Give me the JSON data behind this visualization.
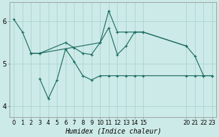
{
  "xlabel": "Humidex (Indice chaleur)",
  "background_color": "#cceae7",
  "grid_color": "#aad4d0",
  "line_color": "#1a6b60",
  "ylim": [
    3.75,
    6.45
  ],
  "xlim": [
    -0.5,
    23.5
  ],
  "yticks": [
    4,
    5,
    6
  ],
  "xticks": [
    0,
    1,
    2,
    3,
    4,
    5,
    6,
    7,
    8,
    9,
    10,
    11,
    12,
    13,
    14,
    15,
    20,
    21,
    22,
    23
  ],
  "lines": [
    {
      "x": [
        0,
        1,
        2,
        3,
        10,
        11,
        12,
        13,
        14,
        15,
        20,
        21,
        22,
        23
      ],
      "y": [
        6.05,
        5.75,
        5.25,
        5.25,
        5.5,
        6.25,
        5.75,
        5.75,
        5.75,
        5.75,
        5.42,
        5.18,
        4.72,
        4.72
      ]
    },
    {
      "x": [
        2,
        3,
        6,
        7,
        8,
        9,
        10,
        11,
        12,
        13,
        14,
        15,
        20
      ],
      "y": [
        5.25,
        5.25,
        5.5,
        5.38,
        5.25,
        5.22,
        5.5,
        5.85,
        5.22,
        5.42,
        5.75,
        5.75,
        5.42
      ]
    },
    {
      "x": [
        3,
        4,
        5,
        6,
        7,
        8,
        9,
        10,
        11,
        12,
        13,
        14,
        15,
        20,
        21,
        22,
        23
      ],
      "y": [
        4.65,
        4.18,
        4.62,
        5.35,
        5.05,
        4.72,
        4.62,
        4.72,
        4.72,
        4.72,
        4.72,
        4.72,
        4.72,
        4.72,
        4.72,
        4.72,
        4.72
      ]
    }
  ]
}
